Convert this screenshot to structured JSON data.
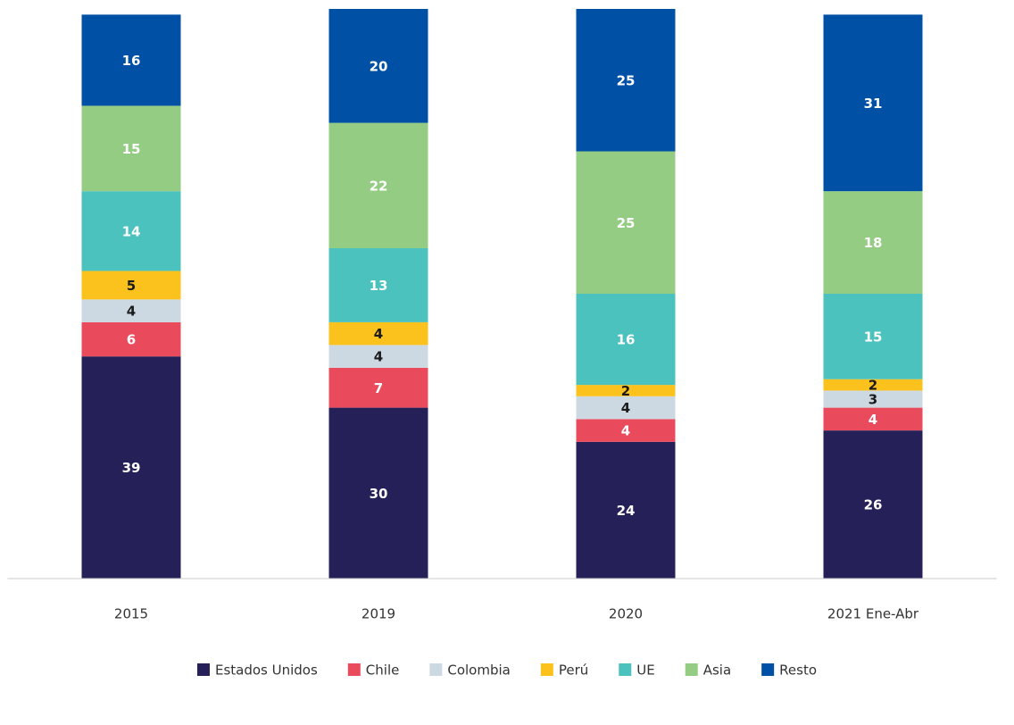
{
  "chart_data": {
    "type": "stacked_bar",
    "categories": [
      "2015",
      "2019",
      "2020",
      "2021 Ene-Abr"
    ],
    "ylim": [
      0,
      100
    ],
    "series": [
      {
        "name": "Estados Unidos",
        "color": "#262058",
        "label_color": "#ffffff",
        "values": [
          39,
          30,
          24,
          26
        ]
      },
      {
        "name": "Chile",
        "color": "#e94b5d",
        "label_color": "#ffffff",
        "values": [
          6,
          7,
          4,
          4
        ]
      },
      {
        "name": "Colombia",
        "color": "#cdd9e2",
        "label_color": "#1a1a1a",
        "values": [
          4,
          4,
          4,
          3
        ]
      },
      {
        "name": "Perú",
        "color": "#fbc21e",
        "label_color": "#1a1a1a",
        "values": [
          5,
          4,
          2,
          2
        ]
      },
      {
        "name": "UE",
        "color": "#4cc2bf",
        "label_color": "#ffffff",
        "values": [
          14,
          13,
          16,
          15
        ]
      },
      {
        "name": "Asia",
        "color": "#93cc82",
        "label_color": "#ffffff",
        "values": [
          15,
          22,
          25,
          18
        ]
      },
      {
        "name": "Resto",
        "color": "#0051a5",
        "label_color": "#ffffff",
        "values": [
          16,
          20,
          25,
          31
        ]
      }
    ],
    "legend": "bottom"
  }
}
